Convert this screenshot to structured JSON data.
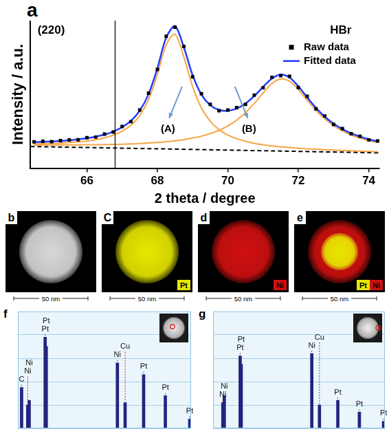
{
  "chart_data": [
    {
      "panel": "a",
      "type": "scatter",
      "x_label": "2 theta / degree",
      "y_label": "Intensity / a.u.",
      "x": [
        64.5,
        64.75,
        65.0,
        65.25,
        65.5,
        65.75,
        66.0,
        66.25,
        66.5,
        66.75,
        67.0,
        67.25,
        67.5,
        67.75,
        68.0,
        68.25,
        68.5,
        68.75,
        69.0,
        69.25,
        69.5,
        69.75,
        70.0,
        70.25,
        70.5,
        70.75,
        71.0,
        71.25,
        71.5,
        71.75,
        72.0,
        72.25,
        72.5,
        72.75,
        73.0,
        73.25,
        73.5,
        73.75,
        74.0,
        74.25
      ],
      "series": [
        {
          "name": "Raw data",
          "color": "#000000",
          "marker": "square",
          "line_style": "none",
          "values": [
            0.182,
            0.186,
            0.183,
            0.191,
            0.195,
            0.197,
            0.211,
            0.215,
            0.236,
            0.25,
            0.288,
            0.322,
            0.402,
            0.519,
            0.683,
            0.912,
            0.975,
            0.842,
            0.631,
            0.515,
            0.441,
            0.397,
            0.402,
            0.419,
            0.441,
            0.505,
            0.556,
            0.628,
            0.64,
            0.635,
            0.558,
            0.497,
            0.41,
            0.361,
            0.302,
            0.274,
            0.238,
            0.221,
            0.196,
            0.188
          ]
        },
        {
          "name": "Fitted data",
          "color": "#1f3cff",
          "marker": "none",
          "line_style": "solid",
          "values": [
            0.18,
            0.182,
            0.185,
            0.188,
            0.193,
            0.199,
            0.207,
            0.218,
            0.232,
            0.253,
            0.283,
            0.328,
            0.398,
            0.512,
            0.69,
            0.903,
            0.983,
            0.837,
            0.643,
            0.509,
            0.436,
            0.402,
            0.397,
            0.412,
            0.447,
            0.499,
            0.562,
            0.62,
            0.647,
            0.627,
            0.566,
            0.49,
            0.417,
            0.356,
            0.308,
            0.27,
            0.241,
            0.218,
            0.2,
            0.185
          ]
        },
        {
          "color": "#f7a543",
          "marker": "none",
          "line_style": "solid",
          "values": [
            0.168,
            0.169,
            0.171,
            0.173,
            0.177,
            0.182,
            0.188,
            0.197,
            0.21,
            0.228,
            0.255,
            0.297,
            0.364,
            0.474,
            0.646,
            0.853,
            0.926,
            0.77,
            0.564,
            0.416,
            0.324,
            0.266,
            0.229,
            0.204,
            0.186,
            0.172,
            0.162,
            0.154,
            0.148,
            0.143,
            0.138,
            0.134,
            0.131,
            0.128,
            0.125,
            0.123,
            0.12,
            0.118,
            0.116,
            0.114
          ]
        },
        {
          "color": "#f7a543",
          "marker": "none",
          "line_style": "solid",
          "values": [
            0.161,
            0.161,
            0.161,
            0.161,
            0.161,
            0.161,
            0.162,
            0.162,
            0.163,
            0.164,
            0.166,
            0.168,
            0.17,
            0.174,
            0.178,
            0.183,
            0.189,
            0.197,
            0.208,
            0.221,
            0.239,
            0.262,
            0.292,
            0.332,
            0.384,
            0.448,
            0.52,
            0.585,
            0.617,
            0.601,
            0.544,
            0.471,
            0.4,
            0.341,
            0.294,
            0.258,
            0.23,
            0.208,
            0.191,
            0.177
          ]
        },
        {
          "color": "#000000",
          "marker": "none",
          "line_style": "dashed",
          "x": [
            64.4,
            74.3
          ],
          "values": [
            0.15,
            0.106
          ]
        }
      ],
      "xlim": [
        64.4,
        74.3
      ],
      "xticks": [
        66,
        68,
        70,
        72,
        74
      ],
      "ylim": [
        0,
        1.02
      ],
      "yticks": [],
      "vline": 66.8,
      "annotations": [
        {
          "text": "(220)",
          "x": 64.6,
          "y": 0.95
        },
        {
          "text": "HBr",
          "x": 72.9,
          "y": 0.95
        },
        {
          "text": "(A)",
          "x": 68.3,
          "y": 0.27
        },
        {
          "text": "(B)",
          "x": 70.6,
          "y": 0.27
        }
      ],
      "legend": "top right",
      "tick_labels": "x",
      "grid": false
    },
    {
      "panel": "f",
      "type": "bar",
      "color": "#23237e",
      "x": [
        0.28,
        0.74,
        0.85,
        2.05,
        2.13,
        7.47,
        8.05,
        9.44,
        11.07,
        12.9
      ],
      "values": [
        35,
        20,
        24,
        78,
        70,
        56,
        22,
        46,
        28,
        8
      ],
      "peak_labels": [
        "C",
        "Ni",
        "Ni",
        "Pt",
        "Pt",
        "Ni",
        "Cu",
        "Pt",
        "Pt",
        "Pt"
      ],
      "xlim": [
        0,
        13
      ],
      "ylim": [
        0,
        100
      ],
      "xticks": [],
      "yticks": [
        0,
        20,
        40,
        60,
        80,
        100
      ],
      "grid": true,
      "tick_labels": false
    },
    {
      "panel": "g",
      "type": "bar",
      "color": "#23237e",
      "x": [
        0.74,
        0.85,
        2.05,
        2.13,
        7.47,
        8.05,
        9.44,
        11.07,
        12.9
      ],
      "values": [
        22,
        28,
        62,
        55,
        64,
        20,
        24,
        14,
        6
      ],
      "peak_labels": [
        "Ni",
        "Ni",
        "Pt",
        "Pt",
        "Ni",
        "Cu",
        "Pt",
        "Pt",
        "Pt"
      ],
      "xlim": [
        0,
        13
      ],
      "ylim": [
        0,
        100
      ],
      "xticks": [],
      "yticks": [
        0,
        20,
        40,
        60,
        80,
        100
      ],
      "grid": true,
      "tick_labels": false
    }
  ],
  "maps": [
    {
      "panel": "b",
      "scale_bar": "50 nm",
      "layers": [
        {
          "color": "#d8d8d8",
          "shape": "disk"
        }
      ]
    },
    {
      "panel": "C",
      "scale_bar": "50 nm",
      "layers": [
        {
          "label": "Pt",
          "color": "#e8e800",
          "shape": "disk"
        }
      ]
    },
    {
      "panel": "d",
      "scale_bar": "50 nm",
      "layers": [
        {
          "label": "Ni",
          "color": "#d01010",
          "shape": "disk"
        }
      ]
    },
    {
      "panel": "e",
      "scale_bar": "50 nm",
      "layers": [
        {
          "label": "Pt",
          "color": "#e8e800",
          "shape": "core"
        },
        {
          "label": "Ni",
          "color": "#d01010",
          "shape": "shell"
        }
      ]
    }
  ]
}
